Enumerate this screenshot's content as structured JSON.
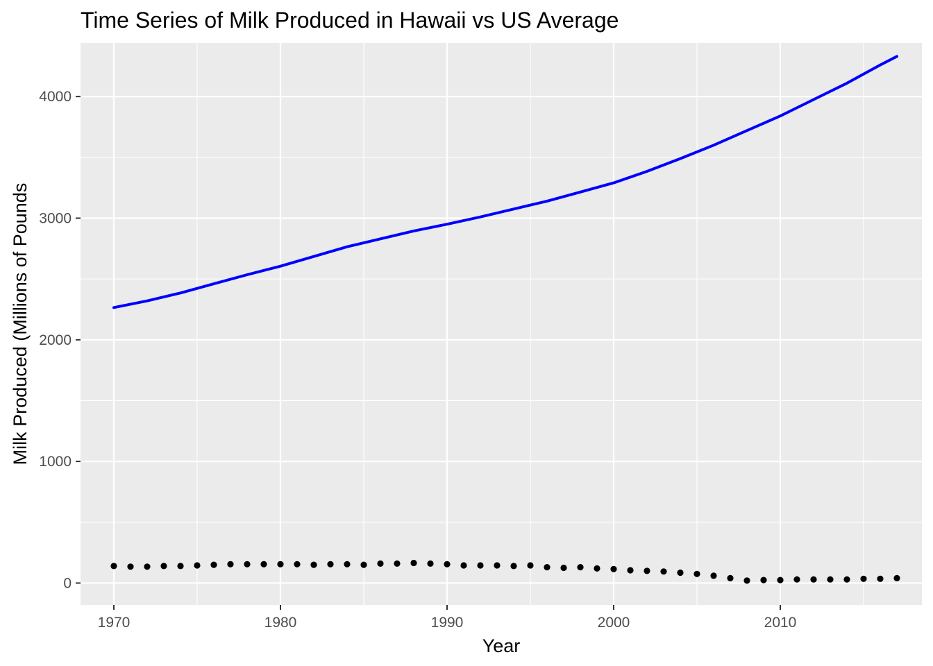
{
  "chart_data": {
    "type": "scatter",
    "title": "Time Series of Milk Produced in Hawaii vs US Average",
    "xlabel": "Year",
    "ylabel": "Milk Produced (Millions of Pounds",
    "xlim": [
      1968,
      2018.5
    ],
    "ylim": [
      -180,
      4440
    ],
    "x_ticks": [
      1970,
      1980,
      1990,
      2000,
      2010
    ],
    "y_ticks": [
      0,
      1000,
      2000,
      3000,
      4000
    ],
    "grid": true,
    "legend": "none",
    "colors": {
      "panel": "#ebebeb",
      "grid": "#ffffff",
      "line": "#0000ff",
      "points": "#000000"
    },
    "series": [
      {
        "mark": "line",
        "x": [
          1970,
          1972,
          1974,
          1976,
          1978,
          1980,
          1982,
          1984,
          1986,
          1988,
          1990,
          1992,
          1994,
          1996,
          1998,
          2000,
          2002,
          2004,
          2006,
          2008,
          2010,
          2012,
          2014,
          2016,
          2017
        ],
        "values": [
          2265,
          2320,
          2385,
          2460,
          2535,
          2605,
          2685,
          2765,
          2830,
          2895,
          2950,
          3010,
          3075,
          3140,
          3215,
          3290,
          3385,
          3490,
          3600,
          3720,
          3840,
          3975,
          4110,
          4260,
          4330
        ]
      },
      {
        "mark": "points",
        "x": [
          1970,
          1971,
          1972,
          1973,
          1974,
          1975,
          1976,
          1977,
          1978,
          1979,
          1980,
          1981,
          1982,
          1983,
          1984,
          1985,
          1986,
          1987,
          1988,
          1989,
          1990,
          1991,
          1992,
          1993,
          1994,
          1995,
          1996,
          1997,
          1998,
          1999,
          2000,
          2001,
          2002,
          2003,
          2004,
          2005,
          2006,
          2007,
          2008,
          2009,
          2010,
          2011,
          2012,
          2013,
          2014,
          2015,
          2016,
          2017
        ],
        "values": [
          140,
          135,
          135,
          140,
          140,
          145,
          150,
          155,
          155,
          155,
          155,
          155,
          150,
          155,
          155,
          150,
          160,
          160,
          165,
          160,
          155,
          145,
          145,
          145,
          140,
          145,
          130,
          125,
          130,
          120,
          115,
          105,
          100,
          95,
          85,
          75,
          60,
          40,
          20,
          25,
          25,
          30,
          30,
          30,
          30,
          35,
          35,
          40
        ]
      }
    ]
  }
}
